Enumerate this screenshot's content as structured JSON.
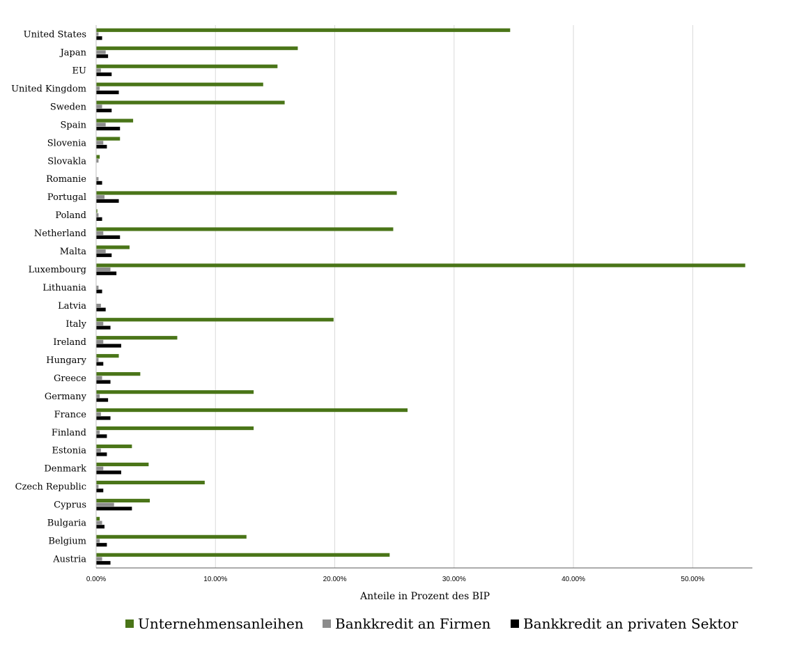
{
  "chart_data": {
    "type": "bar",
    "orientation": "horizontal",
    "xlabel": "Anteile  in Prozent des BIP",
    "xlim": [
      0,
      0.55
    ],
    "xticks": [
      0,
      0.1,
      0.2,
      0.3,
      0.4,
      0.5
    ],
    "xtick_labels": [
      "0.00%",
      "10.00%",
      "20.00%",
      "30.00%",
      "40.00%",
      "50.00%"
    ],
    "grid": true,
    "legend_position": "bottom",
    "categories": [
      "United States",
      "Japan",
      "EU",
      "United Kingdom",
      "Sweden",
      "Spain",
      "Slovenia",
      "Slovakla",
      "Romanie",
      "Portugal",
      "Poland",
      "Netherland",
      "Malta",
      "Luxembourg",
      "Lithuania",
      "Latvia",
      "Italy",
      "Ireland",
      "Hungary",
      "Greece",
      "Germany",
      "France",
      "Finland",
      "Estonia",
      "Denmark",
      "Czech Republic",
      "Cyprus",
      "Bulgaria",
      "Belgium",
      "Austria"
    ],
    "series": [
      {
        "name": "Unternehmensanleihen",
        "color": "#4a7518",
        "values": [
          0.347,
          0.169,
          0.152,
          0.14,
          0.158,
          0.031,
          0.02,
          0.003,
          0.0,
          0.252,
          0.001,
          0.249,
          0.028,
          0.544,
          0.0,
          0.0,
          0.199,
          0.068,
          0.019,
          0.037,
          0.132,
          0.261,
          0.132,
          0.03,
          0.044,
          0.091,
          0.045,
          0.003,
          0.126,
          0.246
        ]
      },
      {
        "name": "Bankkredit an Firmen",
        "color": "#8c8c8c",
        "values": [
          0.002,
          0.008,
          0.004,
          0.003,
          0.005,
          0.008,
          0.006,
          0.002,
          0.002,
          0.007,
          0.002,
          0.006,
          0.008,
          0.012,
          0.002,
          0.004,
          0.006,
          0.006,
          0.002,
          0.005,
          0.003,
          0.004,
          0.003,
          0.004,
          0.006,
          0.002,
          0.015,
          0.005,
          0.003,
          0.005
        ]
      },
      {
        "name": "Bankkredit an privaten Sektor",
        "color": "#000000",
        "values": [
          0.005,
          0.01,
          0.013,
          0.019,
          0.013,
          0.02,
          0.009,
          0.0,
          0.005,
          0.019,
          0.005,
          0.02,
          0.013,
          0.017,
          0.005,
          0.008,
          0.012,
          0.021,
          0.006,
          0.012,
          0.01,
          0.012,
          0.009,
          0.009,
          0.021,
          0.006,
          0.03,
          0.007,
          0.009,
          0.012
        ]
      }
    ]
  }
}
